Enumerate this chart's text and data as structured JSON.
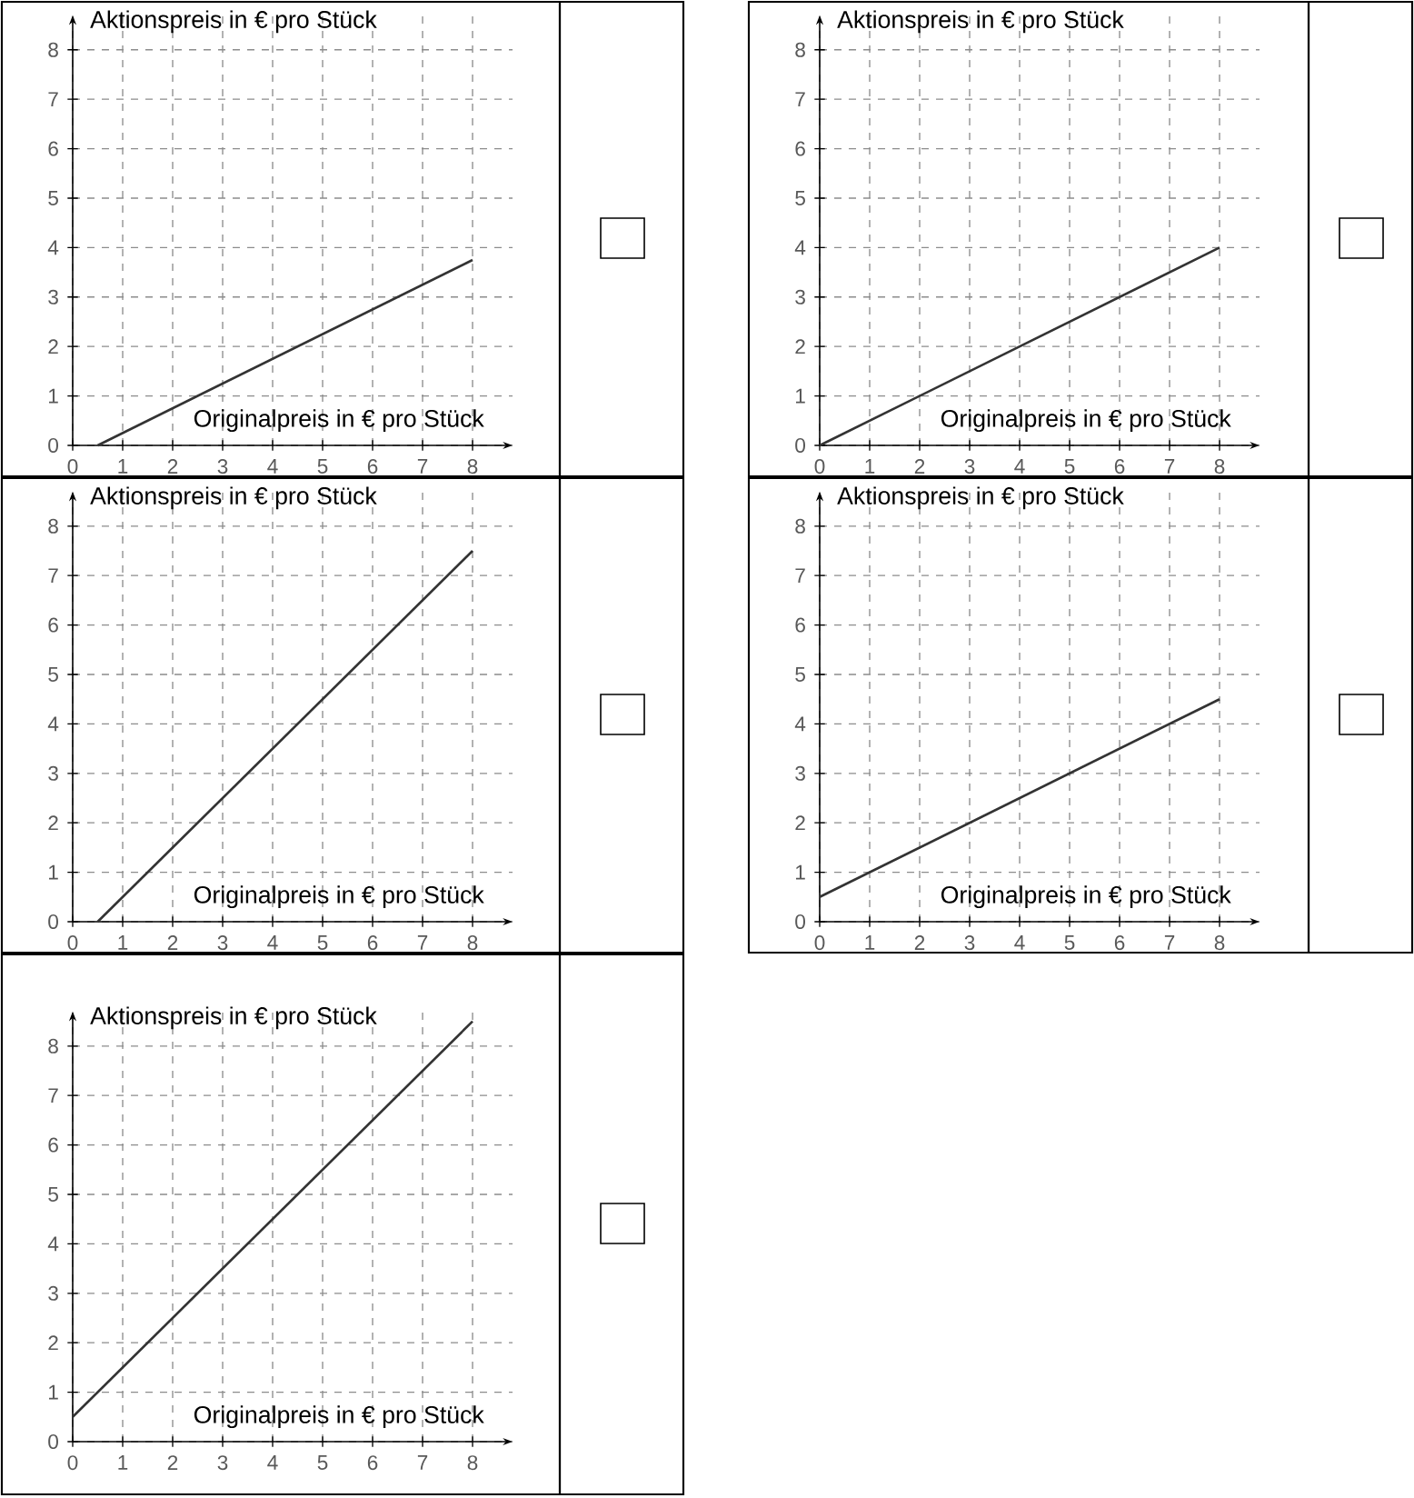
{
  "chart_data": [
    {
      "type": "line",
      "xlabel": "Originalpreis in € pro Stück",
      "ylabel": "Aktionspreis in € pro Stück",
      "x": [
        0.5,
        8
      ],
      "values": [
        0,
        3.75
      ],
      "color": "#333333",
      "xlim": [
        0,
        8.8
      ],
      "ylim": [
        0,
        8.7
      ],
      "xticks": [
        0,
        1,
        2,
        3,
        4,
        5,
        6,
        7,
        8
      ],
      "yticks": [
        0,
        1,
        2,
        3,
        4,
        5,
        6,
        7,
        8
      ],
      "grid": true
    },
    {
      "type": "line",
      "xlabel": "Originalpreis in € pro Stück",
      "ylabel": "Aktionspreis in € pro Stück",
      "x": [
        0,
        8
      ],
      "values": [
        0,
        4
      ],
      "color": "#333333",
      "xlim": [
        0,
        8.8
      ],
      "ylim": [
        0,
        8.7
      ],
      "xticks": [
        0,
        1,
        2,
        3,
        4,
        5,
        6,
        7,
        8
      ],
      "yticks": [
        0,
        1,
        2,
        3,
        4,
        5,
        6,
        7,
        8
      ],
      "grid": true
    },
    {
      "type": "line",
      "xlabel": "Originalpreis in € pro Stück",
      "ylabel": "Aktionspreis in € pro Stück",
      "x": [
        0.5,
        8
      ],
      "values": [
        0,
        7.5
      ],
      "color": "#333333",
      "xlim": [
        0,
        8.8
      ],
      "ylim": [
        0,
        8.7
      ],
      "xticks": [
        0,
        1,
        2,
        3,
        4,
        5,
        6,
        7,
        8
      ],
      "yticks": [
        0,
        1,
        2,
        3,
        4,
        5,
        6,
        7,
        8
      ],
      "grid": true
    },
    {
      "type": "line",
      "xlabel": "Originalpreis in € pro Stück",
      "ylabel": "Aktionspreis in € pro Stück",
      "x": [
        0,
        8
      ],
      "values": [
        0.5,
        4.5
      ],
      "color": "#333333",
      "xlim": [
        0,
        8.8
      ],
      "ylim": [
        0,
        8.7
      ],
      "xticks": [
        0,
        1,
        2,
        3,
        4,
        5,
        6,
        7,
        8
      ],
      "yticks": [
        0,
        1,
        2,
        3,
        4,
        5,
        6,
        7,
        8
      ],
      "grid": true
    },
    {
      "type": "line",
      "xlabel": "Originalpreis in € pro Stück",
      "ylabel": "Aktionspreis in € pro Stück",
      "x": [
        0,
        8
      ],
      "values": [
        0.5,
        8.5
      ],
      "color": "#333333",
      "xlim": [
        0,
        8.8
      ],
      "ylim": [
        0,
        8.7
      ],
      "xticks": [
        0,
        1,
        2,
        3,
        4,
        5,
        6,
        7,
        8
      ],
      "yticks": [
        0,
        1,
        2,
        3,
        4,
        5,
        6,
        7,
        8
      ],
      "grid": true
    }
  ]
}
